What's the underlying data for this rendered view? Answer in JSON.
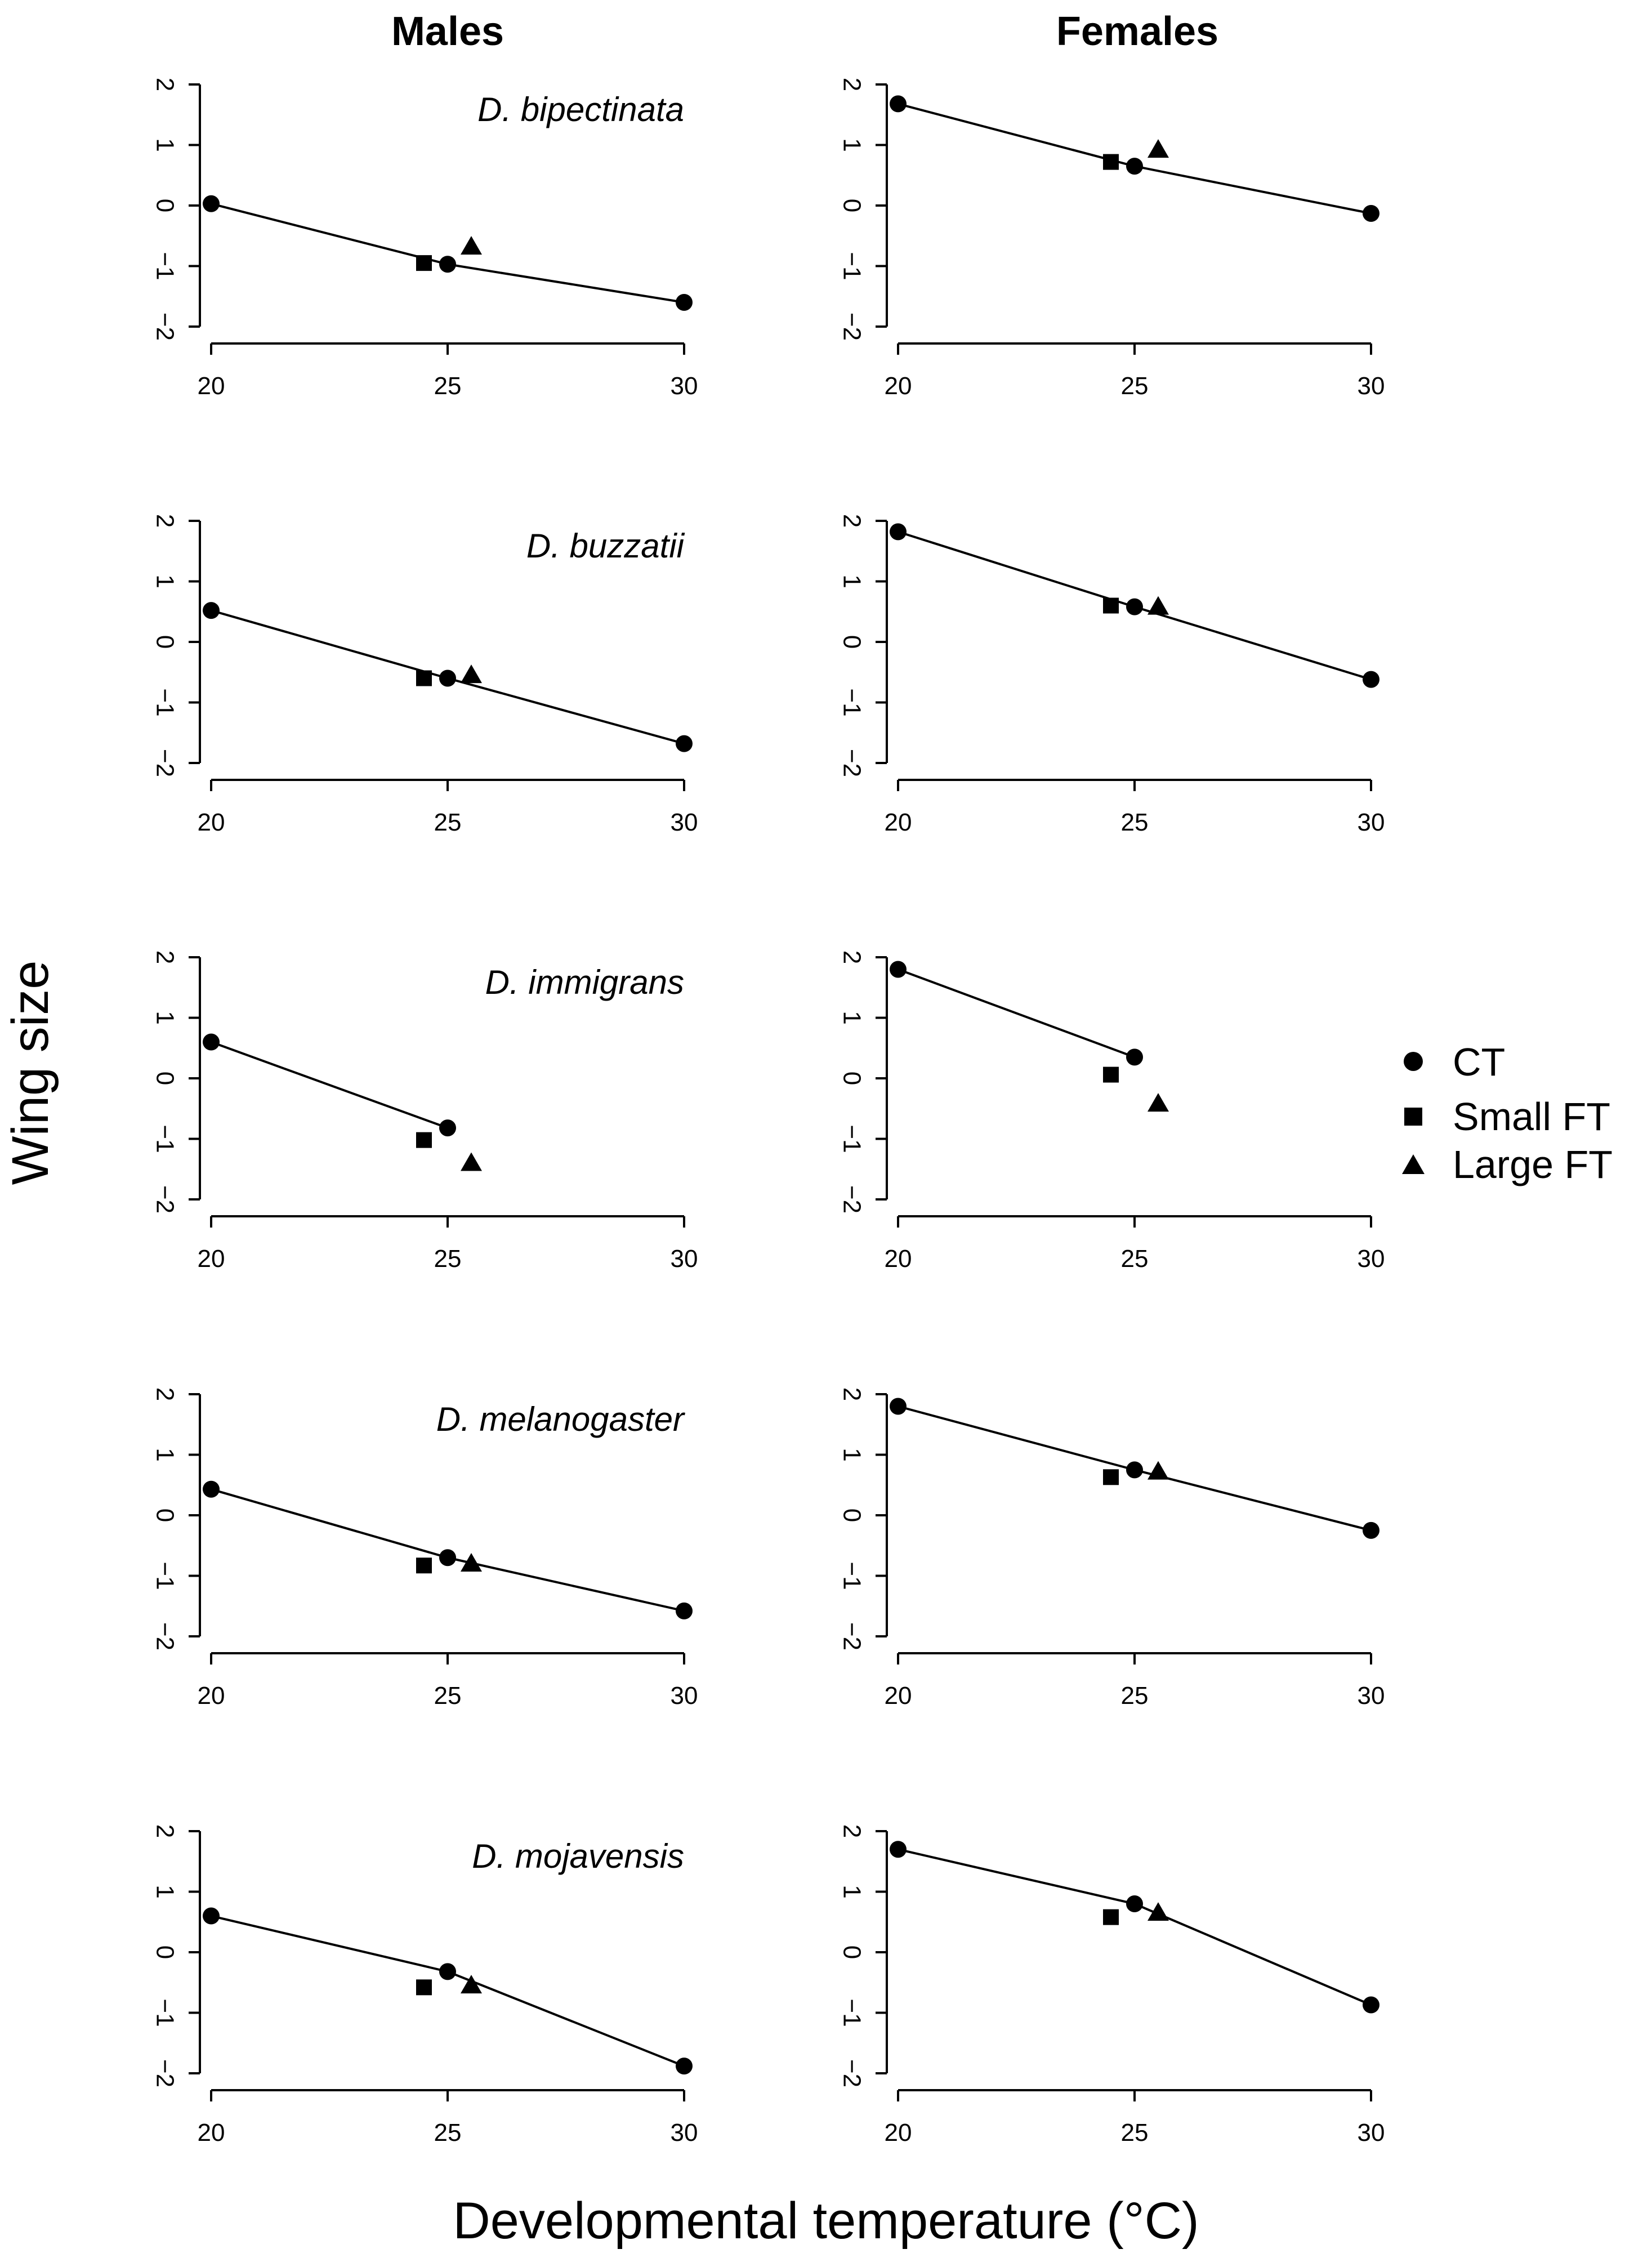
{
  "figure": {
    "col_titles": [
      "Males",
      "Females"
    ],
    "xlabel": "Developmental temperature (°C)",
    "ylabel": "Wing size"
  },
  "legend": {
    "items": [
      {
        "label": "CT",
        "marker": "circle"
      },
      {
        "label": "Small FT",
        "marker": "square"
      },
      {
        "label": "Large FT",
        "marker": "triangle"
      }
    ]
  },
  "chart_data": [
    {
      "type": "scatter",
      "panel": "males",
      "species": "D. bipectinata",
      "xlim": [
        20,
        30
      ],
      "ylim": [
        -2,
        2
      ],
      "xticks": [
        20,
        25,
        30
      ],
      "yticks": [
        -2,
        -1,
        0,
        1,
        2
      ],
      "series": [
        {
          "name": "CT",
          "x": [
            20,
            25,
            30
          ],
          "values": [
            0.03,
            -0.97,
            -1.6
          ]
        },
        {
          "name": "Small FT",
          "x": [
            24.5
          ],
          "values": [
            -0.95
          ]
        },
        {
          "name": "Large FT",
          "x": [
            25.5
          ],
          "values": [
            -0.68
          ]
        }
      ]
    },
    {
      "type": "scatter",
      "panel": "females",
      "species": "",
      "xlim": [
        20,
        30
      ],
      "ylim": [
        -2,
        2
      ],
      "xticks": [
        20,
        25,
        30
      ],
      "yticks": [
        -2,
        -1,
        0,
        1,
        2
      ],
      "series": [
        {
          "name": "CT",
          "x": [
            20,
            25,
            30
          ],
          "values": [
            1.68,
            0.65,
            -0.13
          ]
        },
        {
          "name": "Small FT",
          "x": [
            24.5
          ],
          "values": [
            0.72
          ]
        },
        {
          "name": "Large FT",
          "x": [
            25.5
          ],
          "values": [
            0.92
          ]
        }
      ]
    },
    {
      "type": "scatter",
      "panel": "males",
      "species": "D. buzzatii",
      "xlim": [
        20,
        30
      ],
      "ylim": [
        -2,
        2
      ],
      "xticks": [
        20,
        25,
        30
      ],
      "yticks": [
        -2,
        -1,
        0,
        1,
        2
      ],
      "series": [
        {
          "name": "CT",
          "x": [
            20,
            25,
            30
          ],
          "values": [
            0.52,
            -0.6,
            -1.68
          ]
        },
        {
          "name": "Small FT",
          "x": [
            24.5
          ],
          "values": [
            -0.6
          ]
        },
        {
          "name": "Large FT",
          "x": [
            25.5
          ],
          "values": [
            -0.55
          ]
        }
      ]
    },
    {
      "type": "scatter",
      "panel": "females",
      "species": "",
      "xlim": [
        20,
        30
      ],
      "ylim": [
        -2,
        2
      ],
      "xticks": [
        20,
        25,
        30
      ],
      "yticks": [
        -2,
        -1,
        0,
        1,
        2
      ],
      "series": [
        {
          "name": "CT",
          "x": [
            20,
            25,
            30
          ],
          "values": [
            1.82,
            0.58,
            -0.62
          ]
        },
        {
          "name": "Small FT",
          "x": [
            24.5
          ],
          "values": [
            0.6
          ]
        },
        {
          "name": "Large FT",
          "x": [
            25.5
          ],
          "values": [
            0.58
          ]
        }
      ]
    },
    {
      "type": "scatter",
      "panel": "males",
      "species": "D. immigrans",
      "xlim": [
        20,
        30
      ],
      "ylim": [
        -2,
        2
      ],
      "xticks": [
        20,
        25,
        30
      ],
      "yticks": [
        -2,
        -1,
        0,
        1,
        2
      ],
      "series": [
        {
          "name": "CT",
          "x": [
            20,
            25
          ],
          "values": [
            0.6,
            -0.82
          ]
        },
        {
          "name": "Small FT",
          "x": [
            24.5
          ],
          "values": [
            -1.02
          ]
        },
        {
          "name": "Large FT",
          "x": [
            25.5
          ],
          "values": [
            -1.4
          ]
        }
      ]
    },
    {
      "type": "scatter",
      "panel": "females",
      "species": "",
      "xlim": [
        20,
        30
      ],
      "ylim": [
        -2,
        2
      ],
      "xticks": [
        20,
        25,
        30
      ],
      "yticks": [
        -2,
        -1,
        0,
        1,
        2
      ],
      "series": [
        {
          "name": "CT",
          "x": [
            20,
            25
          ],
          "values": [
            1.8,
            0.35
          ]
        },
        {
          "name": "Small FT",
          "x": [
            24.5
          ],
          "values": [
            0.06
          ]
        },
        {
          "name": "Large FT",
          "x": [
            25.5
          ],
          "values": [
            -0.42
          ]
        }
      ]
    },
    {
      "type": "scatter",
      "panel": "males",
      "species": "D. melanogaster",
      "xlim": [
        20,
        30
      ],
      "ylim": [
        -2,
        2
      ],
      "xticks": [
        20,
        25,
        30
      ],
      "yticks": [
        -2,
        -1,
        0,
        1,
        2
      ],
      "series": [
        {
          "name": "CT",
          "x": [
            20,
            25,
            30
          ],
          "values": [
            0.43,
            -0.7,
            -1.58
          ]
        },
        {
          "name": "Small FT",
          "x": [
            24.5
          ],
          "values": [
            -0.83
          ]
        },
        {
          "name": "Large FT",
          "x": [
            25.5
          ],
          "values": [
            -0.8
          ]
        }
      ]
    },
    {
      "type": "scatter",
      "panel": "females",
      "species": "",
      "xlim": [
        20,
        30
      ],
      "ylim": [
        -2,
        2
      ],
      "xticks": [
        20,
        25,
        30
      ],
      "yticks": [
        -2,
        -1,
        0,
        1,
        2
      ],
      "series": [
        {
          "name": "CT",
          "x": [
            20,
            25,
            30
          ],
          "values": [
            1.8,
            0.75,
            -0.25
          ]
        },
        {
          "name": "Small FT",
          "x": [
            24.5
          ],
          "values": [
            0.63
          ]
        },
        {
          "name": "Large FT",
          "x": [
            25.5
          ],
          "values": [
            0.72
          ]
        }
      ]
    },
    {
      "type": "scatter",
      "panel": "males",
      "species": "D. mojavensis",
      "xlim": [
        20,
        30
      ],
      "ylim": [
        -2,
        2
      ],
      "xticks": [
        20,
        25,
        30
      ],
      "yticks": [
        -2,
        -1,
        0,
        1,
        2
      ],
      "series": [
        {
          "name": "CT",
          "x": [
            20,
            25,
            30
          ],
          "values": [
            0.6,
            -0.32,
            -1.88
          ]
        },
        {
          "name": "Small FT",
          "x": [
            24.5
          ],
          "values": [
            -0.58
          ]
        },
        {
          "name": "Large FT",
          "x": [
            25.5
          ],
          "values": [
            -0.55
          ]
        }
      ]
    },
    {
      "type": "scatter",
      "panel": "females",
      "species": "",
      "xlim": [
        20,
        30
      ],
      "ylim": [
        -2,
        2
      ],
      "xticks": [
        20,
        25,
        30
      ],
      "yticks": [
        -2,
        -1,
        0,
        1,
        2
      ],
      "series": [
        {
          "name": "CT",
          "x": [
            20,
            25,
            30
          ],
          "values": [
            1.7,
            0.8,
            -0.87
          ]
        },
        {
          "name": "Small FT",
          "x": [
            24.5
          ],
          "values": [
            0.58
          ]
        },
        {
          "name": "Large FT",
          "x": [
            25.5
          ],
          "values": [
            0.65
          ]
        }
      ]
    }
  ]
}
